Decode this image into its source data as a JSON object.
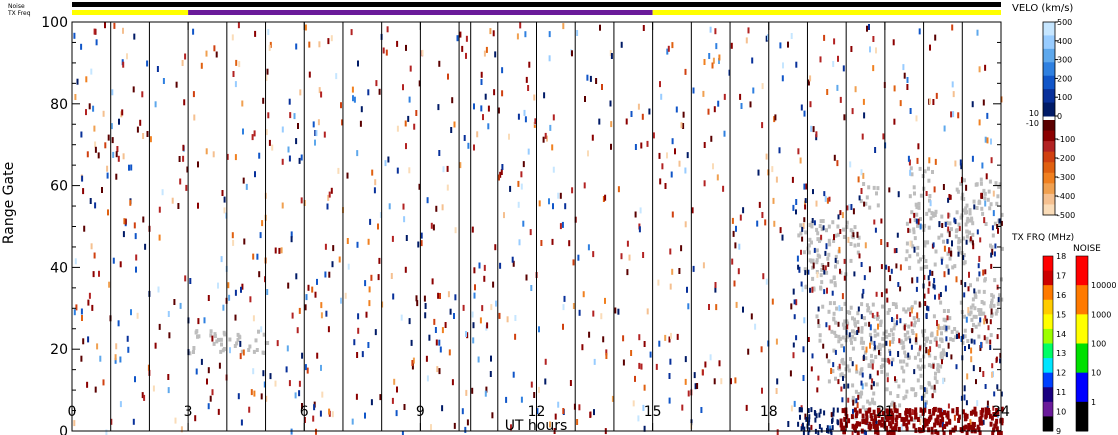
{
  "chart_data": {
    "type": "heatmap",
    "strip_labels": {
      "noise": "Noise",
      "txfreq": "TX Freq"
    },
    "xlabel": "UT hours",
    "ylabel": "Range Gate",
    "xlim": [
      0,
      24
    ],
    "ylim": [
      0,
      100
    ],
    "x_ticks": [
      "0",
      "3",
      "6",
      "9",
      "12",
      "15",
      "18",
      "21",
      "24"
    ],
    "x_tick_values": [
      0,
      3,
      6,
      9,
      12,
      15,
      18,
      21,
      24
    ],
    "y_ticks": [
      "0",
      "20",
      "40",
      "60",
      "80",
      "100"
    ],
    "y_tick_values": [
      0,
      20,
      40,
      60,
      80,
      100
    ],
    "scan_boundaries_hours": [
      1,
      2,
      3,
      4,
      5,
      6,
      7,
      8,
      9,
      10,
      10.3,
      11,
      12,
      13,
      14,
      15,
      16,
      17,
      18,
      19,
      20,
      21,
      22,
      23
    ],
    "txfreq_strip": [
      {
        "start": 0,
        "end": 3,
        "color": "#ffff00"
      },
      {
        "start": 3,
        "end": 15,
        "color": "#6a1b9a"
      },
      {
        "start": 15,
        "end": 24,
        "color": "#ffff00"
      }
    ],
    "noise_strip_color": "#000000",
    "ground_scatter_color": "#bdbdbd",
    "ground_scatter_regions": [
      {
        "h0": 3.0,
        "h1": 5.1,
        "g0": 19,
        "g1": 25
      },
      {
        "h0": 18.7,
        "h1": 20.3,
        "g0": 40,
        "g1": 52
      },
      {
        "h0": 18.9,
        "h1": 20.0,
        "g0": 35,
        "g1": 42
      },
      {
        "h0": 19.2,
        "h1": 23.8,
        "g0": 22,
        "g1": 32
      },
      {
        "h0": 19.5,
        "h1": 22.5,
        "g0": 10,
        "g1": 25
      },
      {
        "h0": 20.1,
        "h1": 22.2,
        "g0": 3,
        "g1": 10
      },
      {
        "h0": 20.3,
        "h1": 20.8,
        "g0": 55,
        "g1": 61
      },
      {
        "h0": 21.5,
        "h1": 23.2,
        "g0": 40,
        "g1": 55
      },
      {
        "h0": 22.8,
        "h1": 24.0,
        "g0": 45,
        "g1": 62
      },
      {
        "h0": 21.6,
        "h1": 22.2,
        "g0": 55,
        "g1": 65
      },
      {
        "h0": 23.0,
        "h1": 24.0,
        "g0": 28,
        "g1": 38
      }
    ],
    "bottom_band": {
      "h0": 19.8,
      "h1": 24.0,
      "g0": 0,
      "g1": 6,
      "color": "#8b0000"
    },
    "velocity_colorbar": {
      "title": "VELO (km/s)",
      "max": 500,
      "min": -500,
      "labels": [
        "500",
        "400",
        "300",
        "200",
        "100",
        "0",
        "-100",
        "-200",
        "-300",
        "-400",
        "-500"
      ],
      "label_values": [
        500,
        400,
        300,
        200,
        100,
        0,
        -100,
        -200,
        -300,
        -400,
        -500
      ],
      "gap_labels": [
        "10",
        "-10"
      ],
      "colors_positive_top_down": [
        "#c6e6ff",
        "#98ccff",
        "#5ea8ec",
        "#2f80e0",
        "#1055c8",
        "#08309a",
        "#001a66"
      ],
      "colors_negative_top_down": [
        "#5a0000",
        "#8b0000",
        "#b22222",
        "#d04010",
        "#e06010",
        "#f08020",
        "#f0a050",
        "#f5c090",
        "#fadcb8"
      ]
    },
    "txfreq_colorbar": {
      "title": "TX FRQ (MHz)",
      "labels": [
        "18",
        "17",
        "16",
        "15",
        "14",
        "13",
        "12",
        "11",
        "10",
        "9"
      ],
      "colors_top_down": [
        "#ff0000",
        "#cc0000",
        "#ff7a00",
        "#ffcc00",
        "#ffff00",
        "#9cff00",
        "#00ff66",
        "#00e5ff",
        "#0040ff",
        "#1a0080",
        "#6a1b9a",
        "#000000"
      ]
    },
    "noise_colorbar": {
      "title": "NOISE",
      "labels": [
        "10000",
        "1000",
        "100",
        "10",
        "1"
      ],
      "colors_top_down": [
        "#ff0000",
        "#ff7a00",
        "#ffff00",
        "#00e000",
        "#0000ff",
        "#000000"
      ]
    }
  }
}
